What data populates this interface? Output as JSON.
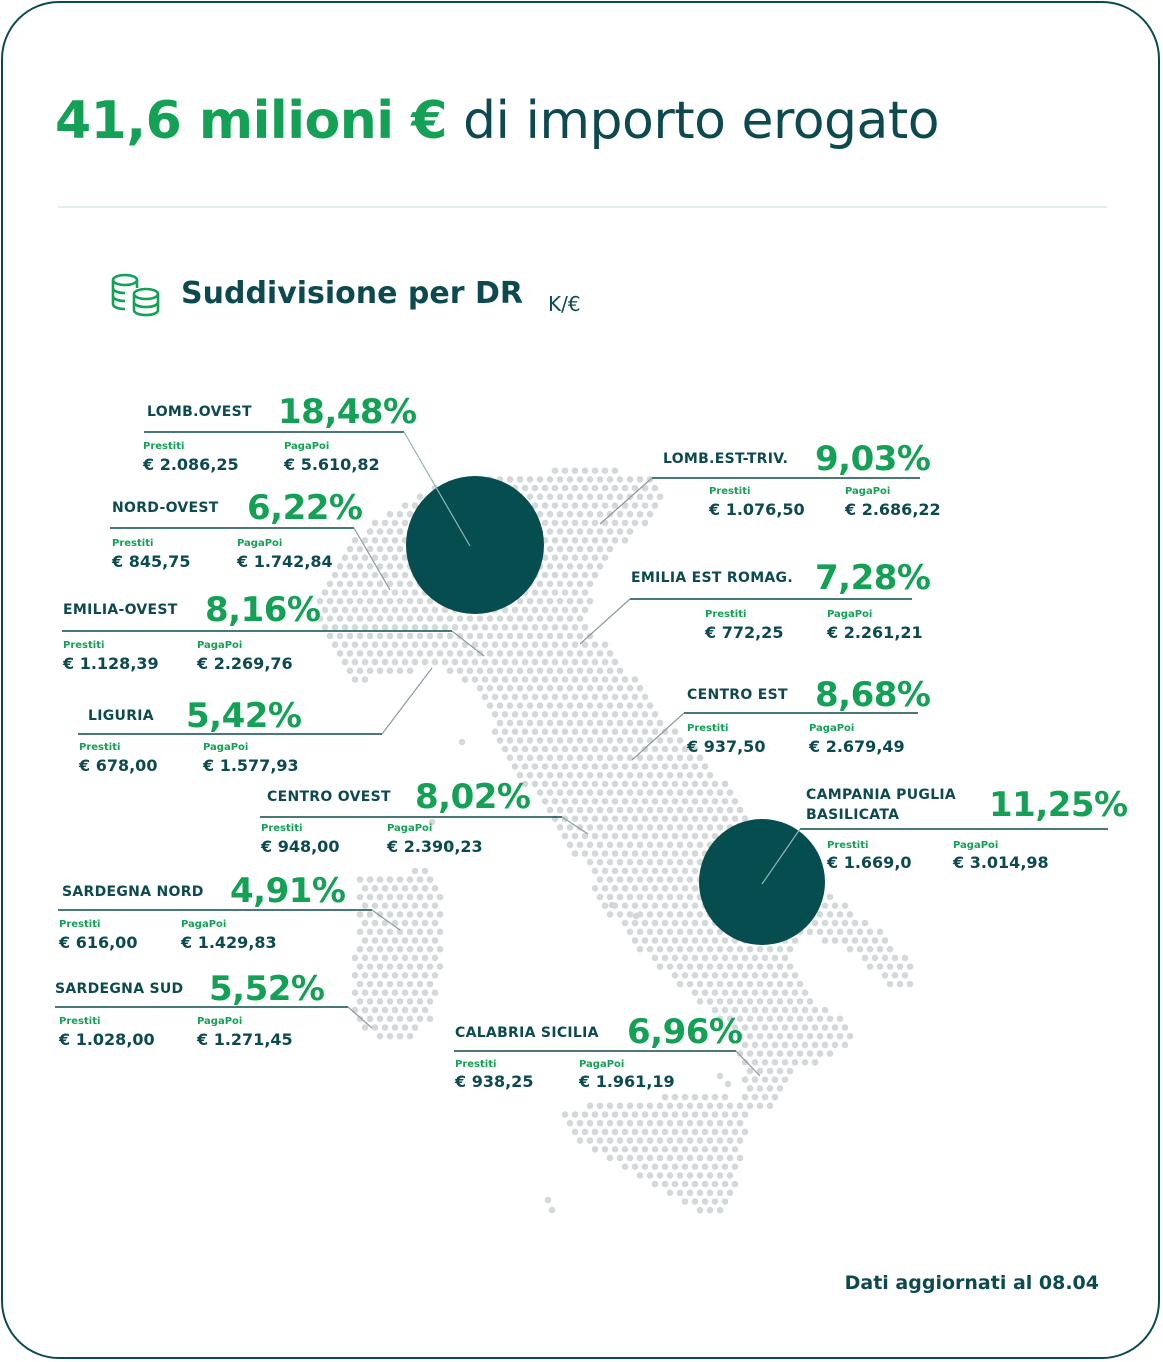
{
  "header": {
    "headline_strong": "41,6 milioni €",
    "headline_rest": "di importo erogato"
  },
  "section": {
    "title": "Suddivisione per DR",
    "unit": "K/€",
    "icon": "coins-stack-icon"
  },
  "labels": {
    "loans": "Prestiti",
    "paylater": "PagaPoi"
  },
  "regions": [
    {
      "name": "LOMB.OVEST",
      "pct": "18,48%",
      "prestiti": "€ 2.086,25",
      "pagapoi": "€ 5.610,82"
    },
    {
      "name": "NORD-OVEST",
      "pct": "6,22%",
      "prestiti": "€ 845,75",
      "pagapoi": "€ 1.742,84"
    },
    {
      "name": "EMILIA-OVEST",
      "pct": "8,16%",
      "prestiti": "€ 1.128,39",
      "pagapoi": "€ 2.269,76"
    },
    {
      "name": "LIGURIA",
      "pct": "5,42%",
      "prestiti": "€ 678,00",
      "pagapoi": "€ 1.577,93"
    },
    {
      "name": "CENTRO OVEST",
      "pct": "8,02%",
      "prestiti": "€ 948,00",
      "pagapoi": "€ 2.390,23"
    },
    {
      "name": "SARDEGNA NORD",
      "pct": "4,91%",
      "prestiti": "€ 616,00",
      "pagapoi": "€ 1.429,83"
    },
    {
      "name": "SARDEGNA SUD",
      "pct": "5,52%",
      "prestiti": "€ 1.028,00",
      "pagapoi": "€ 1.271,45"
    },
    {
      "name": "LOMB.EST-TRIV.",
      "pct": "9,03%",
      "prestiti": "€ 1.076,50",
      "pagapoi": "€ 2.686,22"
    },
    {
      "name": "EMILIA EST ROMAG.",
      "pct": "7,28%",
      "prestiti": "€ 772,25",
      "pagapoi": "€ 2.261,21"
    },
    {
      "name": "CENTRO EST",
      "pct": "8,68%",
      "prestiti": "€ 937,50",
      "pagapoi": "€ 2.679,49"
    },
    {
      "name": "CAMPANIA PUGLIA",
      "name2": "BASILICATA",
      "pct": "11,25%",
      "prestiti": "€ 1.669,0",
      "pagapoi": "€ 3.014,98"
    },
    {
      "name": "CALABRIA SICILIA",
      "pct": "6,96%",
      "prestiti": "€ 938,25",
      "pagapoi": "€ 1.961,19"
    }
  ],
  "highlight_regions": [
    "LOMB.OVEST",
    "CAMPANIA PUGLIA BASILICATA"
  ],
  "colors": {
    "accent_green": "#14a155",
    "dark_teal": "#0d4a4f",
    "map_dots": "#d3d8da",
    "highlight_circle": "#064d50"
  },
  "footer": {
    "note": "Dati aggiornati al 08.04"
  }
}
